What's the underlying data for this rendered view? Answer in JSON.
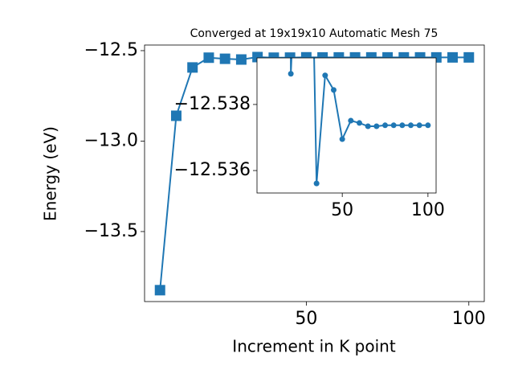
{
  "chart_data": {
    "type": "line",
    "title": "Converged at 19x19x10 Automatic Mesh 75",
    "x_label": "Increment in K point",
    "y_label": "Energy (eV)",
    "x": [
      5,
      10,
      15,
      20,
      25,
      30,
      35,
      40,
      45,
      50,
      55,
      60,
      65,
      70,
      75,
      80,
      85,
      90,
      95,
      100
    ],
    "series": [
      {
        "color": "#1f77b4",
        "values": [
          -13.824,
          -12.86,
          -12.593,
          -12.53893,
          -12.545,
          -12.549,
          -12.53561,
          -12.53888,
          -12.53844,
          -12.53695,
          -12.53751,
          -12.53744,
          -12.53734,
          -12.53734,
          -12.53737,
          -12.53737,
          -12.53737,
          -12.53737,
          -12.53737,
          -12.53737
        ]
      }
    ],
    "xlim": [
      0.25,
      104.75
    ],
    "ylim": [
      -13.887,
      -12.469
    ],
    "xticks": [
      50,
      100
    ],
    "yticks": [
      {
        "value": -12.5,
        "label": "−12.5"
      },
      {
        "value": -13.0,
        "label": "−13.0"
      },
      {
        "value": -13.5,
        "label": "−13.5"
      }
    ],
    "inset": {
      "xlim": [
        0.25,
        104.75
      ],
      "ylim": [
        -12.53532,
        -12.53941
      ],
      "xticks": [
        50,
        100
      ],
      "yticks": [
        {
          "value": -12.538,
          "label": "−12.538"
        },
        {
          "value": -12.536,
          "label": "−12.536"
        }
      ]
    }
  }
}
